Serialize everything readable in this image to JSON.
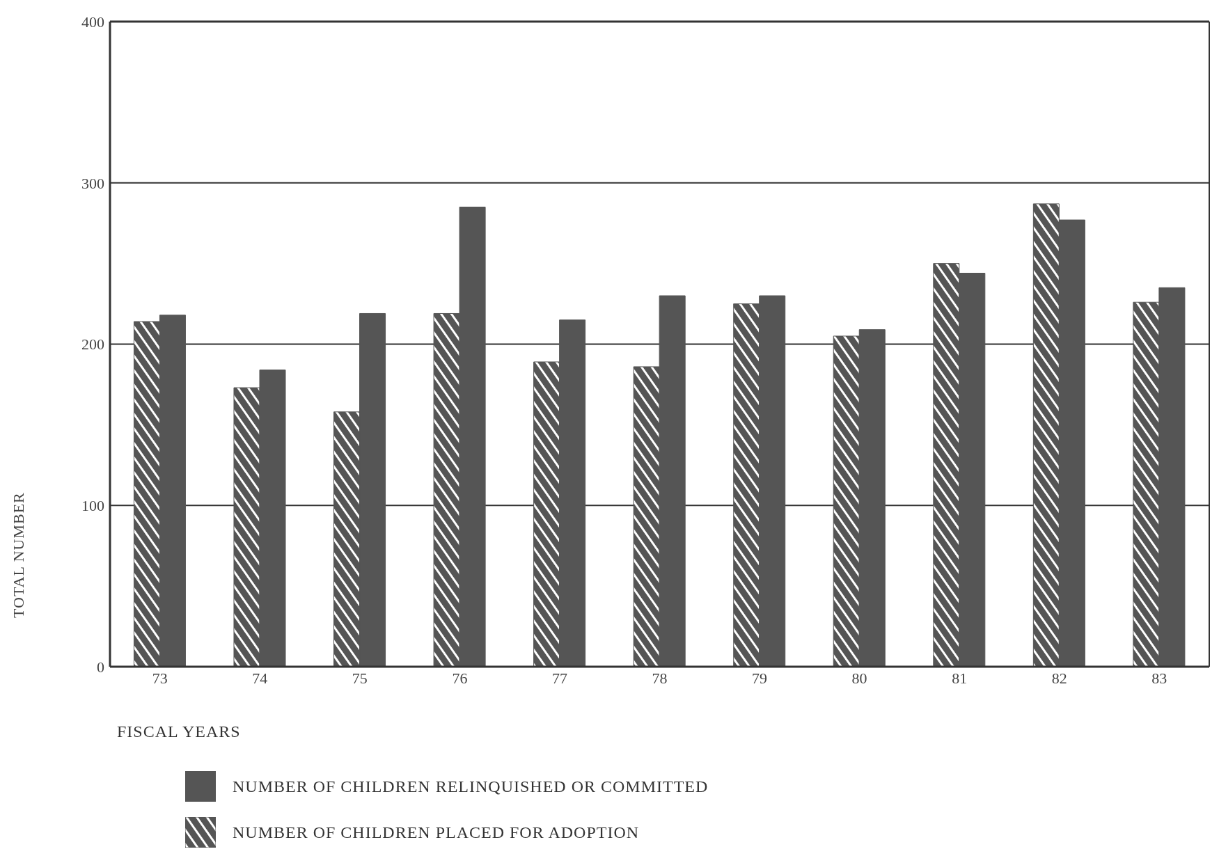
{
  "chart_data": {
    "type": "bar",
    "xlabel": "FISCAL YEARS",
    "ylabel": "TOTAL NUMBER",
    "categories": [
      "73",
      "74",
      "75",
      "76",
      "77",
      "78",
      "79",
      "80",
      "81",
      "82",
      "83"
    ],
    "series": [
      {
        "name": "NUMBER OF CHILDREN PLACED FOR ADOPTION",
        "color": "#555555",
        "values": [
          214,
          173,
          158,
          219,
          189,
          186,
          225,
          205,
          250,
          287,
          226
        ]
      },
      {
        "name": "NUMBER OF CHILDREN RELINQUISHED OR COMMITTED",
        "color": "#555555",
        "values": [
          218,
          184,
          219,
          285,
          215,
          230,
          230,
          209,
          244,
          277,
          235
        ]
      }
    ],
    "ylim": [
      0,
      400
    ],
    "yticks": [
      0,
      100,
      200,
      300,
      400
    ],
    "grid": "y",
    "legend": "bottom"
  }
}
